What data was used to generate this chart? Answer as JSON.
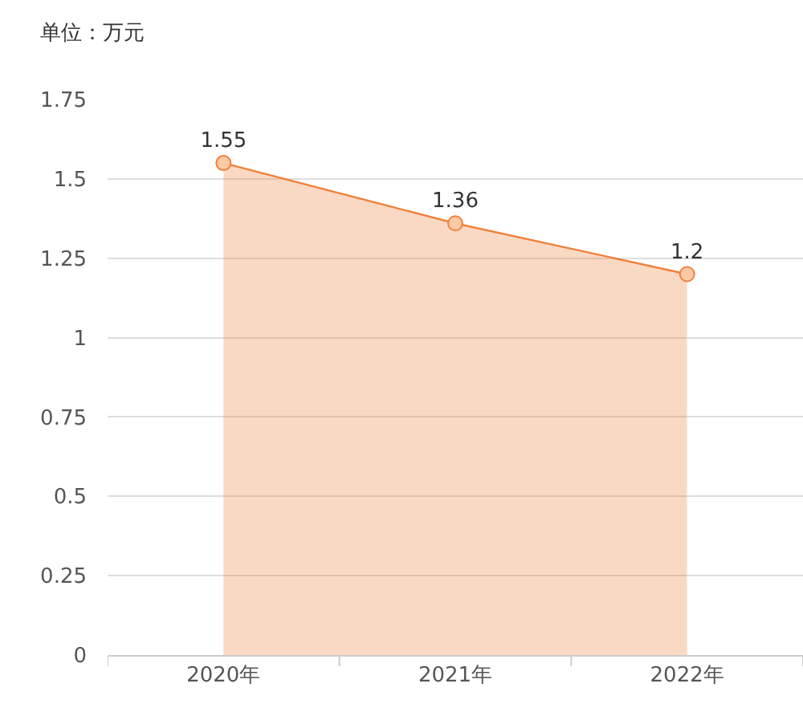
{
  "chart_data": {
    "type": "area",
    "title": "单位：万元",
    "categories": [
      "2020年",
      "2021年",
      "2022年"
    ],
    "series": [
      {
        "color": "#f0813a",
        "values": [
          1.55,
          1.36,
          1.2
        ]
      }
    ],
    "ylim": [
      0,
      1.75
    ],
    "yticks": [
      0,
      0.25,
      0.5,
      0.75,
      1,
      1.25,
      1.5,
      1.75
    ],
    "grid": "y",
    "marker": "circle",
    "data_labels": true
  }
}
